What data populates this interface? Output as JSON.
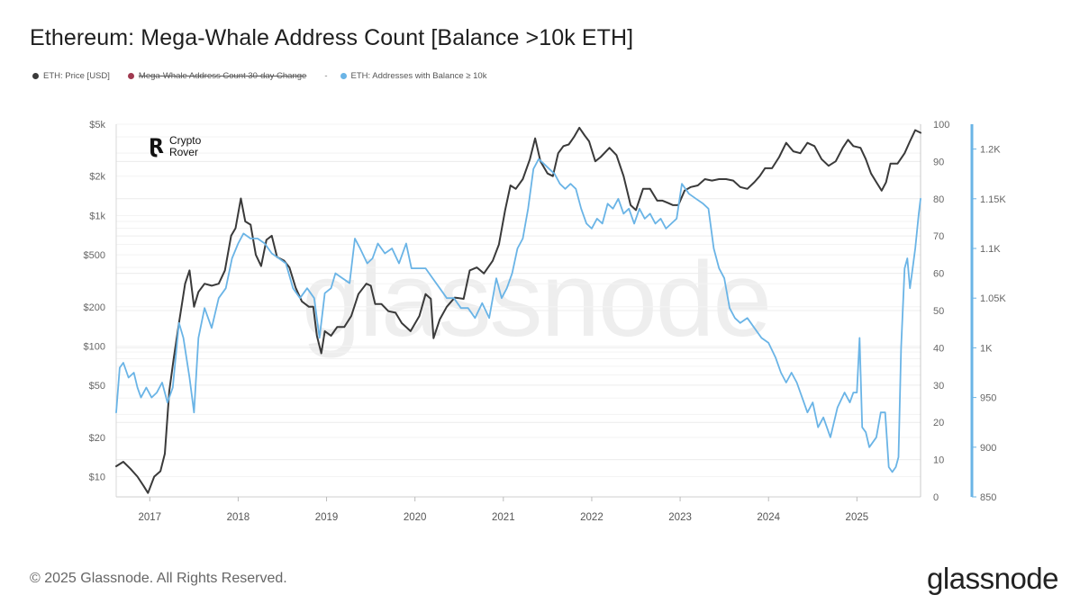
{
  "header": {
    "title": "Ethereum: Mega-Whale Address Count [Balance >10k ETH]"
  },
  "legend": {
    "items": [
      {
        "label": "ETH: Price [USD]",
        "color": "#3a3a3a",
        "struck": false
      },
      {
        "label": "Mega-Whale Address Count 30-day Change",
        "color": "#a03a50",
        "struck": true
      },
      {
        "label": "ETH: Addresses with Balance ≥ 10k",
        "color": "#6ab4e6",
        "struck": false
      }
    ],
    "separator": "-"
  },
  "footer": {
    "copyright": "© 2025 Glassnode. All Rights Reserved.",
    "brand": "glassnode"
  },
  "watermark": {
    "logo_line1": "Crypto",
    "logo_line2": "Rover",
    "background": "glassnode"
  },
  "chart_data": {
    "type": "line",
    "title": "Ethereum: Mega-Whale Address Count [Balance >10k ETH]",
    "x_ticks": [
      "2017",
      "2018",
      "2019",
      "2020",
      "2021",
      "2022",
      "2023",
      "2024",
      "2025"
    ],
    "x_range": [
      2016.62,
      2025.72
    ],
    "y_left": {
      "scale": "log",
      "ticks": [
        10,
        20,
        50,
        100,
        200,
        500,
        1000,
        2000,
        5000
      ],
      "tick_labels": [
        "$10",
        "$20",
        "$50",
        "$100",
        "$200",
        "$500",
        "$1k",
        "$2k",
        "$5k"
      ],
      "range": [
        7,
        5000
      ]
    },
    "y_mid": {
      "ticks": [
        0,
        10,
        20,
        30,
        40,
        50,
        60,
        70,
        80,
        90,
        100
      ],
      "range": [
        0,
        100
      ]
    },
    "y_right": {
      "ticks": [
        850,
        900,
        950,
        1000,
        1050,
        1100,
        1150,
        1200
      ],
      "tick_labels": [
        "850",
        "900",
        "950",
        "1K",
        "1.05K",
        "1.1K",
        "1.15K",
        "1.2K"
      ],
      "range": [
        850,
        1225
      ]
    },
    "series": [
      {
        "name": "ETH: Price [USD]",
        "color": "#3a3a3a",
        "axis": "left",
        "points": [
          [
            2016.62,
            12
          ],
          [
            2016.7,
            13
          ],
          [
            2016.78,
            11.5
          ],
          [
            2016.86,
            10
          ],
          [
            2016.93,
            8.5
          ],
          [
            2016.98,
            7.5
          ],
          [
            2017.05,
            10
          ],
          [
            2017.12,
            11
          ],
          [
            2017.17,
            15
          ],
          [
            2017.22,
            45
          ],
          [
            2017.27,
            80
          ],
          [
            2017.33,
            150
          ],
          [
            2017.4,
            300
          ],
          [
            2017.45,
            380
          ],
          [
            2017.5,
            200
          ],
          [
            2017.55,
            260
          ],
          [
            2017.62,
            300
          ],
          [
            2017.7,
            290
          ],
          [
            2017.78,
            300
          ],
          [
            2017.85,
            380
          ],
          [
            2017.92,
            700
          ],
          [
            2017.97,
            800
          ],
          [
            2018.03,
            1350
          ],
          [
            2018.08,
            900
          ],
          [
            2018.14,
            850
          ],
          [
            2018.2,
            500
          ],
          [
            2018.26,
            410
          ],
          [
            2018.32,
            650
          ],
          [
            2018.38,
            700
          ],
          [
            2018.44,
            480
          ],
          [
            2018.52,
            450
          ],
          [
            2018.58,
            400
          ],
          [
            2018.65,
            280
          ],
          [
            2018.72,
            220
          ],
          [
            2018.8,
            200
          ],
          [
            2018.85,
            200
          ],
          [
            2018.89,
            120
          ],
          [
            2018.94,
            88
          ],
          [
            2018.98,
            130
          ],
          [
            2019.05,
            120
          ],
          [
            2019.12,
            140
          ],
          [
            2019.2,
            140
          ],
          [
            2019.28,
            170
          ],
          [
            2019.36,
            250
          ],
          [
            2019.45,
            300
          ],
          [
            2019.5,
            290
          ],
          [
            2019.55,
            210
          ],
          [
            2019.62,
            210
          ],
          [
            2019.7,
            185
          ],
          [
            2019.78,
            180
          ],
          [
            2019.85,
            150
          ],
          [
            2019.95,
            130
          ],
          [
            2020.05,
            170
          ],
          [
            2020.12,
            250
          ],
          [
            2020.18,
            230
          ],
          [
            2020.21,
            115
          ],
          [
            2020.28,
            160
          ],
          [
            2020.36,
            200
          ],
          [
            2020.45,
            235
          ],
          [
            2020.55,
            230
          ],
          [
            2020.62,
            380
          ],
          [
            2020.7,
            400
          ],
          [
            2020.78,
            360
          ],
          [
            2020.88,
            450
          ],
          [
            2020.95,
            600
          ],
          [
            2021.02,
            1100
          ],
          [
            2021.08,
            1700
          ],
          [
            2021.14,
            1600
          ],
          [
            2021.22,
            1900
          ],
          [
            2021.3,
            2700
          ],
          [
            2021.36,
            3900
          ],
          [
            2021.42,
            2600
          ],
          [
            2021.5,
            2100
          ],
          [
            2021.56,
            2000
          ],
          [
            2021.62,
            3000
          ],
          [
            2021.68,
            3400
          ],
          [
            2021.74,
            3500
          ],
          [
            2021.8,
            4000
          ],
          [
            2021.86,
            4700
          ],
          [
            2021.92,
            4100
          ],
          [
            2021.97,
            3700
          ],
          [
            2022.04,
            2600
          ],
          [
            2022.1,
            2800
          ],
          [
            2022.2,
            3300
          ],
          [
            2022.28,
            2900
          ],
          [
            2022.36,
            2000
          ],
          [
            2022.44,
            1200
          ],
          [
            2022.5,
            1100
          ],
          [
            2022.58,
            1600
          ],
          [
            2022.66,
            1600
          ],
          [
            2022.74,
            1300
          ],
          [
            2022.8,
            1300
          ],
          [
            2022.86,
            1250
          ],
          [
            2022.92,
            1200
          ],
          [
            2022.98,
            1200
          ],
          [
            2023.05,
            1550
          ],
          [
            2023.12,
            1650
          ],
          [
            2023.2,
            1700
          ],
          [
            2023.28,
            1900
          ],
          [
            2023.36,
            1850
          ],
          [
            2023.44,
            1900
          ],
          [
            2023.52,
            1900
          ],
          [
            2023.6,
            1850
          ],
          [
            2023.68,
            1650
          ],
          [
            2023.76,
            1600
          ],
          [
            2023.84,
            1800
          ],
          [
            2023.9,
            2000
          ],
          [
            2023.96,
            2300
          ],
          [
            2024.04,
            2300
          ],
          [
            2024.12,
            2800
          ],
          [
            2024.2,
            3600
          ],
          [
            2024.28,
            3100
          ],
          [
            2024.36,
            3000
          ],
          [
            2024.44,
            3600
          ],
          [
            2024.52,
            3400
          ],
          [
            2024.6,
            2700
          ],
          [
            2024.68,
            2400
          ],
          [
            2024.76,
            2600
          ],
          [
            2024.84,
            3300
          ],
          [
            2024.9,
            3800
          ],
          [
            2024.96,
            3400
          ],
          [
            2025.04,
            3300
          ],
          [
            2025.1,
            2700
          ],
          [
            2025.16,
            2100
          ],
          [
            2025.22,
            1800
          ],
          [
            2025.28,
            1550
          ],
          [
            2025.33,
            1800
          ],
          [
            2025.38,
            2500
          ],
          [
            2025.46,
            2500
          ],
          [
            2025.54,
            3000
          ],
          [
            2025.6,
            3700
          ],
          [
            2025.66,
            4500
          ],
          [
            2025.72,
            4300
          ]
        ]
      },
      {
        "name": "ETH: Addresses with Balance ≥ 10k",
        "color": "#6ab4e6",
        "axis": "right",
        "points": [
          [
            2016.62,
            935
          ],
          [
            2016.66,
            980
          ],
          [
            2016.7,
            985
          ],
          [
            2016.76,
            970
          ],
          [
            2016.82,
            975
          ],
          [
            2016.86,
            960
          ],
          [
            2016.9,
            950
          ],
          [
            2016.96,
            960
          ],
          [
            2017.02,
            950
          ],
          [
            2017.08,
            955
          ],
          [
            2017.14,
            965
          ],
          [
            2017.2,
            945
          ],
          [
            2017.26,
            960
          ],
          [
            2017.33,
            1025
          ],
          [
            2017.38,
            1010
          ],
          [
            2017.45,
            970
          ],
          [
            2017.5,
            935
          ],
          [
            2017.55,
            1010
          ],
          [
            2017.62,
            1040
          ],
          [
            2017.7,
            1020
          ],
          [
            2017.78,
            1050
          ],
          [
            2017.86,
            1060
          ],
          [
            2017.93,
            1090
          ],
          [
            2018.0,
            1105
          ],
          [
            2018.06,
            1115
          ],
          [
            2018.14,
            1110
          ],
          [
            2018.22,
            1110
          ],
          [
            2018.3,
            1105
          ],
          [
            2018.38,
            1095
          ],
          [
            2018.46,
            1090
          ],
          [
            2018.54,
            1085
          ],
          [
            2018.62,
            1060
          ],
          [
            2018.7,
            1050
          ],
          [
            2018.78,
            1060
          ],
          [
            2018.86,
            1050
          ],
          [
            2018.92,
            1010
          ],
          [
            2018.98,
            1055
          ],
          [
            2019.05,
            1060
          ],
          [
            2019.1,
            1075
          ],
          [
            2019.18,
            1070
          ],
          [
            2019.26,
            1065
          ],
          [
            2019.32,
            1110
          ],
          [
            2019.38,
            1100
          ],
          [
            2019.46,
            1085
          ],
          [
            2019.52,
            1090
          ],
          [
            2019.58,
            1105
          ],
          [
            2019.66,
            1095
          ],
          [
            2019.74,
            1100
          ],
          [
            2019.82,
            1085
          ],
          [
            2019.9,
            1105
          ],
          [
            2019.96,
            1080
          ],
          [
            2020.05,
            1080
          ],
          [
            2020.12,
            1080
          ],
          [
            2020.2,
            1070
          ],
          [
            2020.28,
            1060
          ],
          [
            2020.36,
            1050
          ],
          [
            2020.44,
            1050
          ],
          [
            2020.52,
            1040
          ],
          [
            2020.6,
            1040
          ],
          [
            2020.68,
            1030
          ],
          [
            2020.76,
            1045
          ],
          [
            2020.84,
            1030
          ],
          [
            2020.92,
            1070
          ],
          [
            2020.98,
            1050
          ],
          [
            2021.04,
            1060
          ],
          [
            2021.1,
            1075
          ],
          [
            2021.16,
            1100
          ],
          [
            2021.22,
            1110
          ],
          [
            2021.28,
            1140
          ],
          [
            2021.34,
            1180
          ],
          [
            2021.4,
            1190
          ],
          [
            2021.46,
            1185
          ],
          [
            2021.52,
            1180
          ],
          [
            2021.58,
            1175
          ],
          [
            2021.64,
            1165
          ],
          [
            2021.7,
            1160
          ],
          [
            2021.76,
            1165
          ],
          [
            2021.82,
            1160
          ],
          [
            2021.88,
            1140
          ],
          [
            2021.94,
            1125
          ],
          [
            2022.0,
            1120
          ],
          [
            2022.06,
            1130
          ],
          [
            2022.12,
            1125
          ],
          [
            2022.18,
            1145
          ],
          [
            2022.24,
            1140
          ],
          [
            2022.3,
            1150
          ],
          [
            2022.36,
            1135
          ],
          [
            2022.42,
            1140
          ],
          [
            2022.48,
            1125
          ],
          [
            2022.54,
            1140
          ],
          [
            2022.6,
            1130
          ],
          [
            2022.66,
            1135
          ],
          [
            2022.72,
            1125
          ],
          [
            2022.78,
            1130
          ],
          [
            2022.84,
            1120
          ],
          [
            2022.9,
            1125
          ],
          [
            2022.96,
            1130
          ],
          [
            2023.02,
            1165
          ],
          [
            2023.1,
            1155
          ],
          [
            2023.18,
            1150
          ],
          [
            2023.26,
            1145
          ],
          [
            2023.32,
            1140
          ],
          [
            2023.38,
            1100
          ],
          [
            2023.44,
            1080
          ],
          [
            2023.5,
            1070
          ],
          [
            2023.56,
            1040
          ],
          [
            2023.62,
            1030
          ],
          [
            2023.68,
            1025
          ],
          [
            2023.76,
            1030
          ],
          [
            2023.84,
            1020
          ],
          [
            2023.92,
            1010
          ],
          [
            2024.0,
            1005
          ],
          [
            2024.08,
            990
          ],
          [
            2024.14,
            975
          ],
          [
            2024.2,
            965
          ],
          [
            2024.26,
            975
          ],
          [
            2024.32,
            965
          ],
          [
            2024.38,
            950
          ],
          [
            2024.44,
            935
          ],
          [
            2024.5,
            945
          ],
          [
            2024.56,
            920
          ],
          [
            2024.62,
            930
          ],
          [
            2024.7,
            910
          ],
          [
            2024.78,
            940
          ],
          [
            2024.86,
            955
          ],
          [
            2024.92,
            945
          ],
          [
            2024.96,
            955
          ],
          [
            2025.0,
            955
          ],
          [
            2025.03,
            1010
          ],
          [
            2025.06,
            920
          ],
          [
            2025.1,
            915
          ],
          [
            2025.14,
            900
          ],
          [
            2025.18,
            905
          ],
          [
            2025.22,
            910
          ],
          [
            2025.27,
            935
          ],
          [
            2025.32,
            935
          ],
          [
            2025.36,
            880
          ],
          [
            2025.4,
            875
          ],
          [
            2025.44,
            880
          ],
          [
            2025.47,
            890
          ],
          [
            2025.5,
            1000
          ],
          [
            2025.54,
            1080
          ],
          [
            2025.57,
            1090
          ],
          [
            2025.6,
            1060
          ],
          [
            2025.63,
            1080
          ],
          [
            2025.66,
            1100
          ],
          [
            2025.7,
            1135
          ],
          [
            2025.72,
            1150
          ]
        ]
      }
    ]
  }
}
